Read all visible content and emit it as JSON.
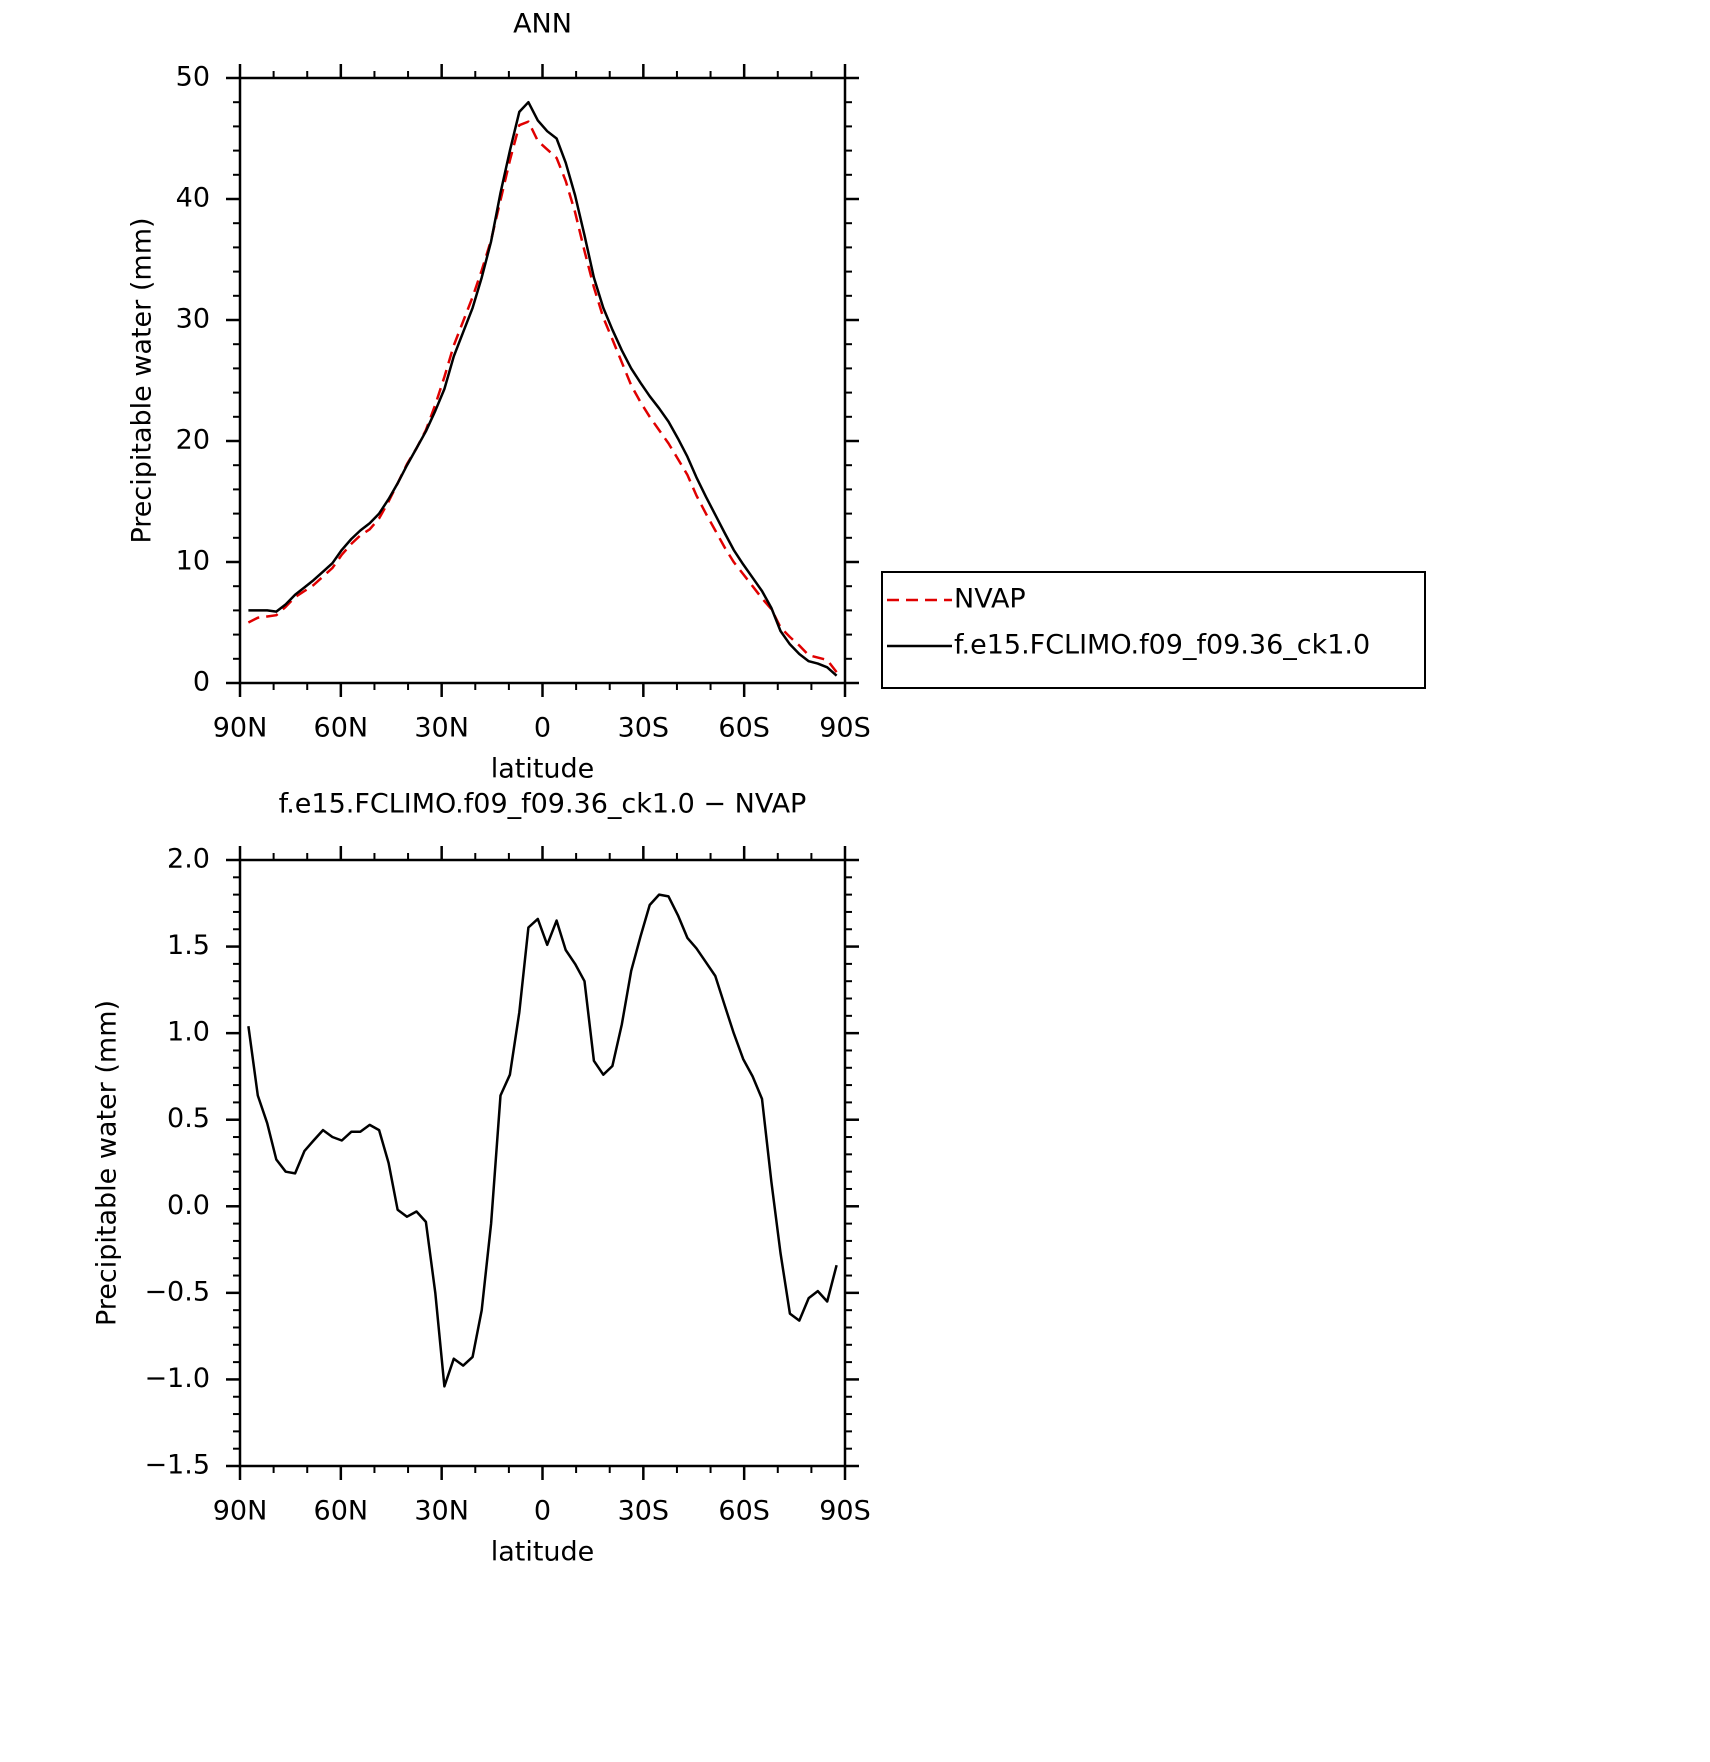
{
  "chart_data": [
    {
      "type": "line",
      "title": "ANN",
      "xlabel": "latitude",
      "ylabel": "Precipitable water (mm)",
      "x": [
        87.5,
        84.7,
        81.9,
        79.2,
        76.4,
        73.6,
        70.8,
        68.1,
        65.3,
        62.5,
        59.7,
        56.9,
        54.2,
        51.4,
        48.6,
        45.8,
        43.1,
        40.3,
        37.5,
        34.7,
        31.9,
        29.2,
        26.4,
        23.6,
        20.8,
        18.1,
        15.3,
        12.5,
        9.7,
        6.9,
        4.2,
        1.4,
        -1.4,
        -4.2,
        -6.9,
        -9.7,
        -12.5,
        -15.3,
        -18.1,
        -20.8,
        -23.6,
        -26.4,
        -29.2,
        -31.9,
        -34.7,
        -37.5,
        -40.3,
        -43.1,
        -45.8,
        -48.6,
        -51.4,
        -54.2,
        -56.9,
        -59.7,
        -62.5,
        -65.3,
        -68.1,
        -70.8,
        -73.6,
        -76.4,
        -79.2,
        -81.9,
        -84.7,
        -87.5
      ],
      "series": [
        {
          "name": "NVAP",
          "color": "#e00000",
          "linestyle": "dashed",
          "values": [
            5.0,
            5.4,
            5.5,
            5.6,
            6.3,
            7.1,
            7.6,
            8.1,
            8.8,
            9.5,
            10.6,
            11.5,
            12.2,
            12.7,
            13.6,
            15.0,
            16.5,
            18.1,
            19.4,
            20.9,
            23.0,
            25.3,
            27.9,
            29.9,
            31.9,
            34.1,
            36.6,
            39.9,
            43.2,
            46.1,
            46.4,
            44.8,
            44.1,
            43.4,
            41.5,
            38.9,
            35.7,
            32.7,
            30.2,
            28.4,
            26.5,
            24.6,
            23.2,
            22.0,
            20.9,
            19.8,
            18.5,
            17.2,
            15.5,
            14.0,
            12.6,
            11.2,
            10.0,
            9.0,
            8.0,
            7.0,
            6.1,
            4.6,
            3.8,
            3.1,
            2.3,
            2.1,
            1.9,
            0.9
          ]
        },
        {
          "name": "f.e15.FCLIMO.f09_f09.36_ck1.0",
          "color": "#000000",
          "linestyle": "solid",
          "values": [
            6.0,
            6.0,
            6.0,
            5.9,
            6.5,
            7.3,
            7.9,
            8.5,
            9.2,
            9.9,
            11.0,
            11.9,
            12.6,
            13.2,
            14.0,
            15.2,
            16.5,
            18.0,
            19.4,
            20.8,
            22.5,
            24.3,
            27.0,
            29.0,
            31.0,
            33.5,
            36.5,
            40.5,
            44.0,
            47.2,
            48.0,
            46.5,
            45.6,
            45.0,
            43.0,
            40.3,
            37.0,
            33.5,
            31.0,
            29.2,
            27.5,
            26.0,
            24.8,
            23.7,
            22.7,
            21.6,
            20.2,
            18.7,
            17.0,
            15.4,
            13.9,
            12.4,
            11.0,
            9.8,
            8.7,
            7.6,
            6.2,
            4.3,
            3.2,
            2.4,
            1.8,
            1.6,
            1.3,
            0.6
          ]
        }
      ],
      "xlim": [
        90,
        -90
      ],
      "xticks": [
        {
          "value": 90,
          "label": "90N"
        },
        {
          "value": 60,
          "label": "60N"
        },
        {
          "value": 30,
          "label": "30N"
        },
        0,
        {
          "value": -30,
          "label": "30S"
        },
        {
          "value": -60,
          "label": "60S"
        },
        {
          "value": -90,
          "label": "90S"
        }
      ],
      "xminorticks": [
        80,
        70,
        50,
        40,
        20,
        10,
        -10,
        -20,
        -40,
        -50,
        -70,
        -80
      ],
      "ylim": [
        0,
        50
      ],
      "yticks": [
        0,
        10,
        20,
        30,
        40,
        50
      ],
      "yminorticks": [
        2,
        4,
        6,
        8,
        12,
        14,
        16,
        18,
        22,
        24,
        26,
        28,
        32,
        34,
        36,
        38,
        42,
        44,
        46,
        48
      ],
      "legend": "right"
    },
    {
      "type": "line",
      "title": "f.e15.FCLIMO.f09_f09.36_ck1.0 − NVAP",
      "xlabel": "latitude",
      "ylabel": "Precipitable water (mm)",
      "x": [
        87.5,
        84.7,
        81.9,
        79.2,
        76.4,
        73.6,
        70.8,
        68.1,
        65.3,
        62.5,
        59.7,
        56.9,
        54.2,
        51.4,
        48.6,
        45.8,
        43.1,
        40.3,
        37.5,
        34.7,
        31.9,
        29.2,
        26.4,
        23.6,
        20.8,
        18.1,
        15.3,
        12.5,
        9.7,
        6.9,
        4.2,
        1.4,
        -1.4,
        -4.2,
        -6.9,
        -9.7,
        -12.5,
        -15.3,
        -18.1,
        -20.8,
        -23.6,
        -26.4,
        -29.2,
        -31.9,
        -34.7,
        -37.5,
        -40.3,
        -43.1,
        -45.8,
        -48.6,
        -51.4,
        -54.2,
        -56.9,
        -59.7,
        -62.5,
        -65.3,
        -68.1,
        -70.8,
        -73.6,
        -76.4,
        -79.2,
        -81.9,
        -84.7,
        -87.5
      ],
      "series": [
        {
          "color": "#000000",
          "linestyle": "solid",
          "values": [
            1.04,
            0.64,
            0.48,
            0.27,
            0.2,
            0.19,
            0.32,
            0.38,
            0.44,
            0.4,
            0.38,
            0.43,
            0.43,
            0.47,
            0.44,
            0.25,
            -0.02,
            -0.06,
            -0.03,
            -0.09,
            -0.5,
            -1.04,
            -0.88,
            -0.92,
            -0.87,
            -0.6,
            -0.1,
            0.64,
            0.76,
            1.12,
            1.61,
            1.66,
            1.51,
            1.65,
            1.48,
            1.4,
            1.3,
            0.84,
            0.76,
            0.81,
            1.05,
            1.36,
            1.56,
            1.74,
            1.8,
            1.79,
            1.68,
            1.55,
            1.49,
            1.41,
            1.33,
            1.16,
            1.0,
            0.85,
            0.75,
            0.62,
            0.14,
            -0.27,
            -0.62,
            -0.66,
            -0.53,
            -0.49,
            -0.55,
            -0.34
          ]
        }
      ],
      "xlim": [
        90,
        -90
      ],
      "xticks": [
        {
          "value": 90,
          "label": "90N"
        },
        {
          "value": 60,
          "label": "60N"
        },
        {
          "value": 30,
          "label": "30N"
        },
        0,
        {
          "value": -30,
          "label": "30S"
        },
        {
          "value": -60,
          "label": "60S"
        },
        {
          "value": -90,
          "label": "90S"
        }
      ],
      "xminorticks": [
        80,
        70,
        50,
        40,
        20,
        10,
        -10,
        -20,
        -40,
        -50,
        -70,
        -80
      ],
      "ylim": [
        -1.5,
        2.0
      ],
      "yticks": [
        {
          "value": -1.5,
          "label": "−1.5"
        },
        {
          "value": -1.0,
          "label": "−1.0"
        },
        {
          "value": -0.5,
          "label": "−0.5"
        },
        {
          "value": 0,
          "label": "0.0"
        },
        0.5,
        {
          "value": 1.0,
          "label": "1.0"
        },
        1.5,
        {
          "value": 2.0,
          "label": "2.0"
        }
      ],
      "yminorticks": [
        -1.4,
        -1.3,
        -1.2,
        -1.1,
        -0.9,
        -0.8,
        -0.7,
        -0.6,
        -0.4,
        -0.3,
        -0.2,
        -0.1,
        0.1,
        0.2,
        0.3,
        0.4,
        0.6,
        0.7,
        0.8,
        0.9,
        1.1,
        1.2,
        1.3,
        1.4,
        1.6,
        1.7,
        1.8,
        1.9
      ]
    }
  ]
}
